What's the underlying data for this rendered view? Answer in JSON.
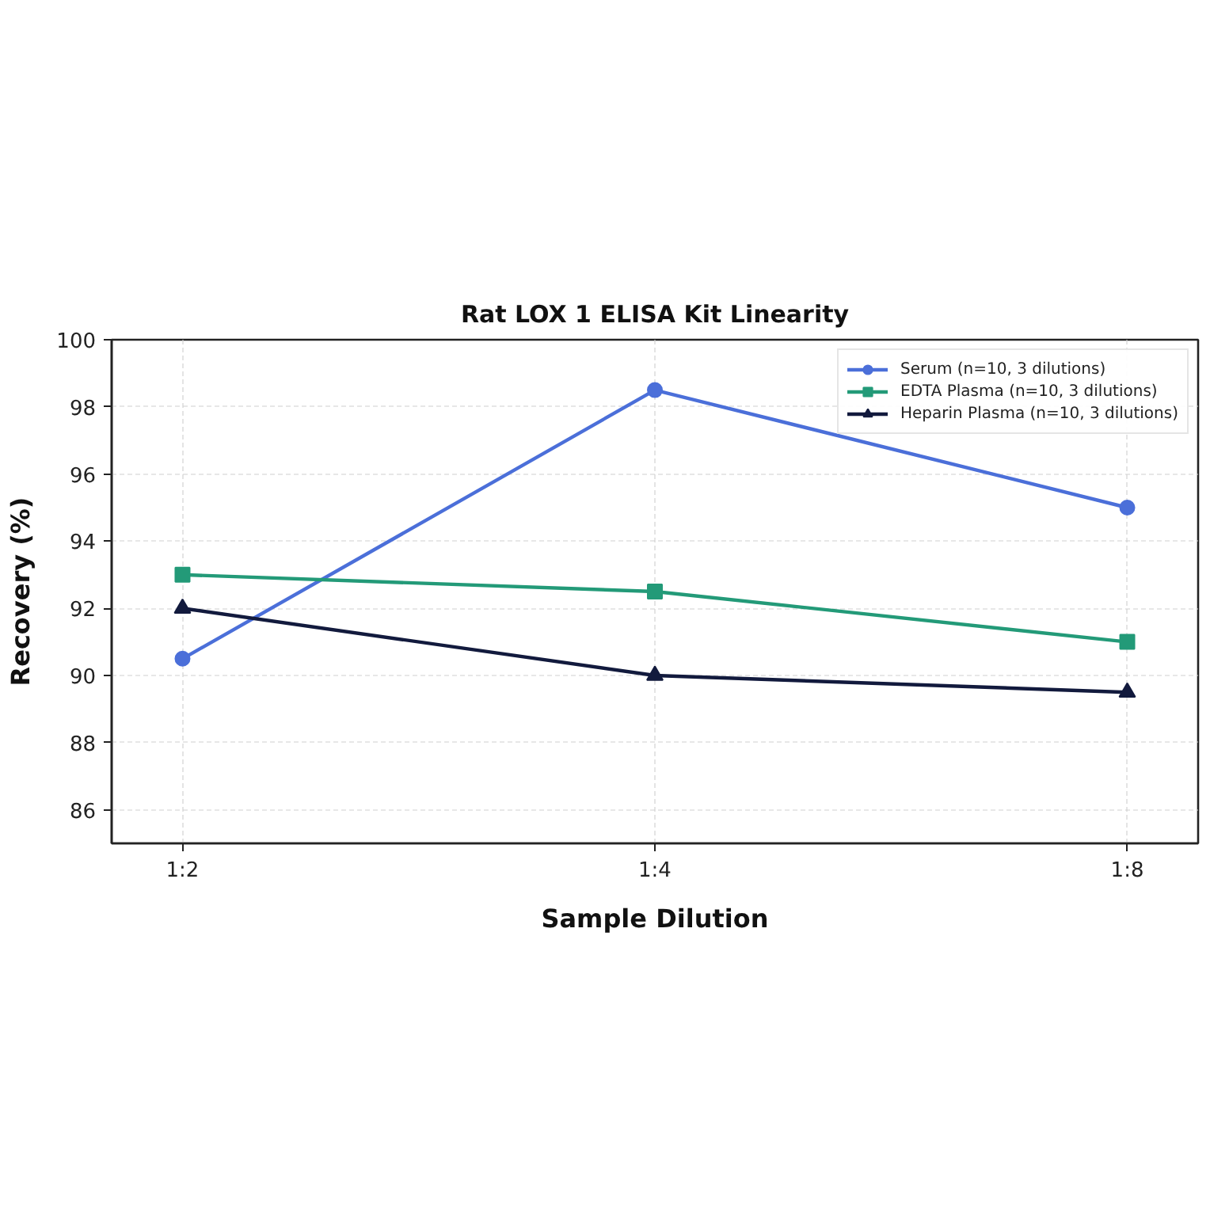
{
  "chart_data": {
    "type": "line",
    "title": "Rat LOX 1 ELISA Kit Linearity",
    "xlabel": "Sample Dilution",
    "ylabel": "Recovery (%)",
    "categories": [
      "1:2",
      "1:4",
      "1:8"
    ],
    "series": [
      {
        "name": "Serum (n=10, 3 dilutions)",
        "color": "#4b6fd9",
        "marker": "circle",
        "values": [
          90.5,
          98.5,
          95.0
        ]
      },
      {
        "name": "EDTA Plasma (n=10, 3 dilutions)",
        "color": "#239a78",
        "marker": "square",
        "values": [
          93.0,
          92.5,
          91.0
        ]
      },
      {
        "name": "Heparin Plasma (n=10, 3 dilutions)",
        "color": "#121a3d",
        "marker": "triangle",
        "values": [
          92.0,
          90.0,
          89.5
        ]
      }
    ],
    "ylim": [
      85,
      100
    ],
    "yticks": [
      86,
      88,
      90,
      92,
      94,
      96,
      98,
      100
    ],
    "grid": true,
    "legend": "top right",
    "line_style": "solid"
  }
}
